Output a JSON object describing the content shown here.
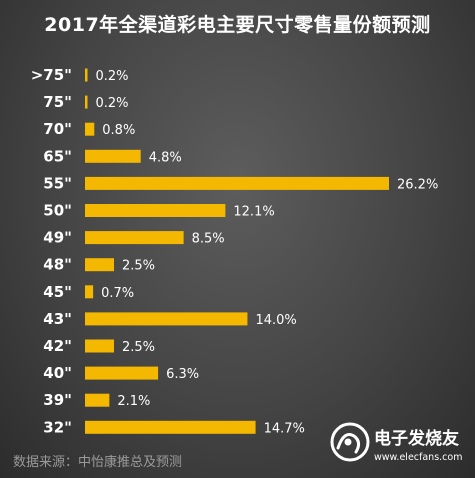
{
  "title": "2017年全渠道彩电主要尺寸零售量份额预测",
  "source": "数据来源：中怡康推总及预测",
  "watermark": {
    "logo_icon": "elecfans-logo-icon",
    "name_cn": "电子发烧友",
    "url": "www.elecfans.com"
  },
  "colors": {
    "bar": "#f5b800",
    "background": "#4a4a4a",
    "text": "#ffffff"
  },
  "chart_data": {
    "type": "bar",
    "orientation": "horizontal",
    "title": "2017年全渠道彩电主要尺寸零售量份额预测",
    "xlabel": "",
    "ylabel": "",
    "unit": "%",
    "xlim": [
      0,
      26.2
    ],
    "grid": false,
    "legend": "none",
    "categories": [
      ">75\"",
      "75\"",
      "70\"",
      "65\"",
      "55\"",
      "50\"",
      "49\"",
      "48\"",
      "45\"",
      "43\"",
      "42\"",
      "40\"",
      "39\"",
      "32\""
    ],
    "values": [
      0.2,
      0.2,
      0.8,
      4.8,
      26.2,
      12.1,
      8.5,
      2.5,
      0.7,
      14.0,
      2.5,
      6.3,
      2.1,
      14.7
    ],
    "value_labels": [
      "0.2%",
      "0.2%",
      "0.8%",
      "4.8%",
      "26.2%",
      "12.1%",
      "8.5%",
      "2.5%",
      "0.7%",
      "14.0%",
      "2.5%",
      "6.3%",
      "2.1%",
      "14.7%"
    ]
  }
}
